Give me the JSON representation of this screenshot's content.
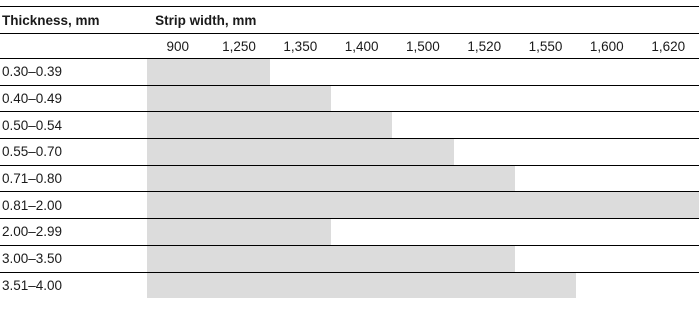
{
  "table": {
    "thickness_header": "Thickness, mm",
    "strip_header": "Strip width, mm",
    "widths": [
      "900",
      "1,250",
      "1,350",
      "1,400",
      "1,500",
      "1,520",
      "1,550",
      "1,600",
      "1,620"
    ],
    "rows": [
      {
        "label": "0.30–0.39",
        "max_width": "1,250",
        "filled_columns": 2
      },
      {
        "label": "0.40–0.49",
        "max_width": "1,350",
        "filled_columns": 3
      },
      {
        "label": "0.50–0.54",
        "max_width": "1,400",
        "filled_columns": 4
      },
      {
        "label": "0.55–0.70",
        "max_width": "1,500",
        "filled_columns": 5
      },
      {
        "label": "0.71–0.80",
        "max_width": "1,520",
        "filled_columns": 6
      },
      {
        "label": "0.81–2.00",
        "max_width": "1,620",
        "filled_columns": 9
      },
      {
        "label": "2.00–2.99",
        "max_width": "1,350",
        "filled_columns": 3
      },
      {
        "label": "3.00–3.50",
        "max_width": "1,520",
        "filled_columns": 6
      },
      {
        "label": "3.51–4.00",
        "max_width": "1,550",
        "filled_columns": 7
      }
    ],
    "fill_color": "#dcdcdc"
  }
}
